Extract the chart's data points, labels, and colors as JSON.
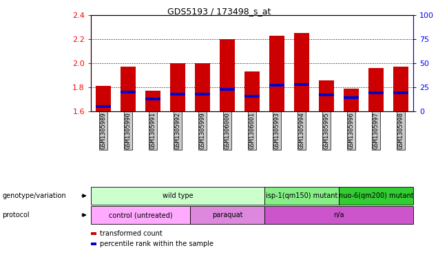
{
  "title": "GDS5193 / 173498_s_at",
  "samples": [
    "GSM1305989",
    "GSM1305990",
    "GSM1305991",
    "GSM1305992",
    "GSM1305999",
    "GSM1306000",
    "GSM1306001",
    "GSM1305993",
    "GSM1305994",
    "GSM1305995",
    "GSM1305996",
    "GSM1305997",
    "GSM1305998"
  ],
  "transformed_count": [
    1.81,
    1.97,
    1.77,
    2.0,
    2.0,
    2.2,
    1.93,
    2.23,
    2.25,
    1.86,
    1.79,
    1.96,
    1.97
  ],
  "percentile_rank": [
    5,
    20,
    13,
    18,
    18,
    23,
    16,
    27,
    28,
    17,
    14,
    19,
    19
  ],
  "bar_base": 1.6,
  "ylim_left": [
    1.6,
    2.4
  ],
  "ylim_right": [
    0,
    100
  ],
  "yticks_left": [
    1.6,
    1.8,
    2.0,
    2.2,
    2.4
  ],
  "yticks_right": [
    0,
    25,
    50,
    75,
    100
  ],
  "grid_lines": [
    1.8,
    2.0,
    2.2
  ],
  "red_color": "#cc0000",
  "blue_color": "#0000cc",
  "genotype_groups": [
    {
      "label": "wild type",
      "start": 0,
      "end": 7,
      "color": "#ccffcc"
    },
    {
      "label": "isp-1(qm150) mutant",
      "start": 7,
      "end": 10,
      "color": "#88ee88"
    },
    {
      "label": "nuo-6(qm200) mutant",
      "start": 10,
      "end": 13,
      "color": "#33cc33"
    }
  ],
  "protocol_groups": [
    {
      "label": "control (untreated)",
      "start": 0,
      "end": 4,
      "color": "#ffaaff"
    },
    {
      "label": "paraquat",
      "start": 4,
      "end": 7,
      "color": "#dd88dd"
    },
    {
      "label": "n/a",
      "start": 7,
      "end": 13,
      "color": "#cc55cc"
    }
  ],
  "legend_red": "transformed count",
  "legend_blue": "percentile rank within the sample",
  "bar_width": 0.6,
  "background_color": "#ffffff",
  "tick_area_color": "#cccccc"
}
